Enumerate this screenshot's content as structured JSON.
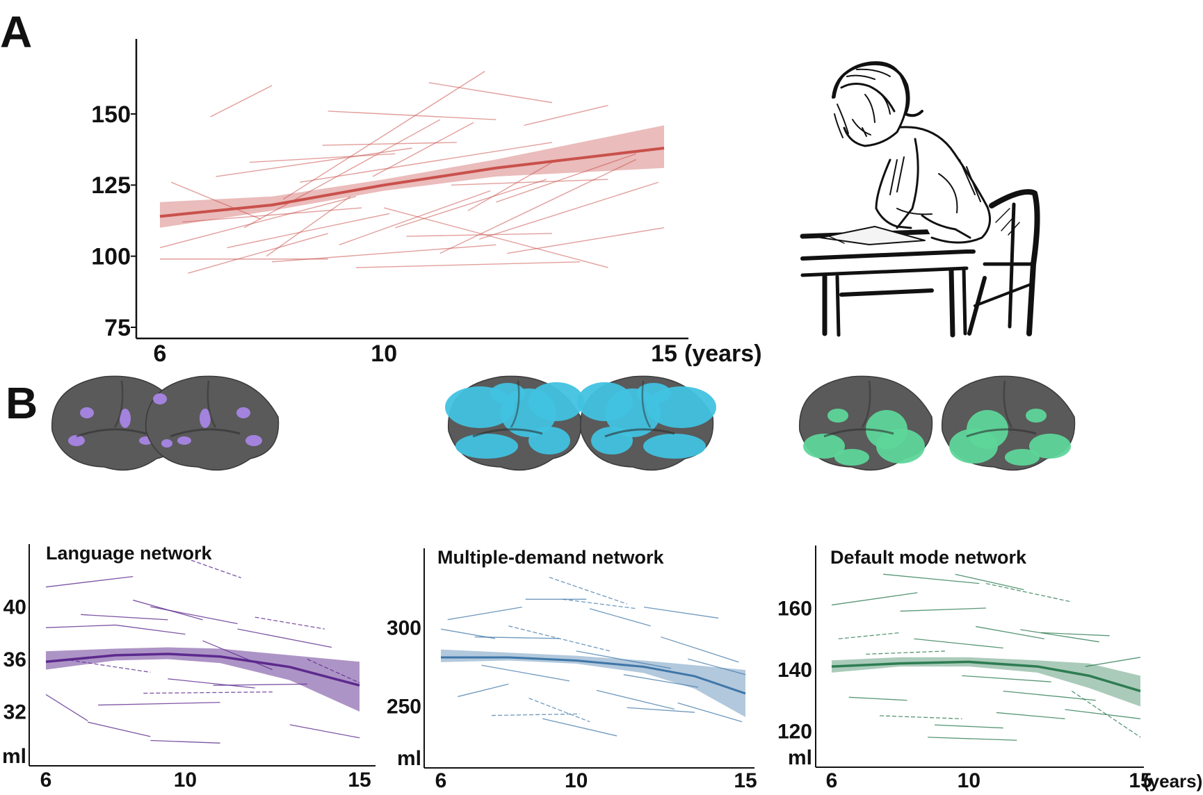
{
  "panel_labels": {
    "a": "A",
    "b": "B"
  },
  "colors": {
    "iq": "#c9504b",
    "language": "#5c2a8e",
    "multiple_demand": "#3e76a8",
    "default_mode": "#2e7d52",
    "brain_gray": "#5a5a5a",
    "language_highlight": "#a886e6",
    "multiple_demand_highlight": "#41c2e0",
    "default_mode_highlight": "#5ed69a"
  },
  "illustration": {
    "name": "child-writing-at-desk",
    "label": ""
  },
  "brains": [
    {
      "network": "language",
      "highlight": "language_highlight"
    },
    {
      "network": "multiple_demand",
      "highlight": "multiple_demand_highlight"
    },
    {
      "network": "default_mode",
      "highlight": "default_mode_highlight"
    }
  ],
  "chart_data": [
    {
      "id": "A",
      "type": "line",
      "title": "",
      "color_key": "iq",
      "xlabel_suffix": "(years)",
      "ylabel": "",
      "xlim": [
        6,
        15
      ],
      "ylim": [
        72,
        170
      ],
      "x_ticks": [
        6,
        10,
        15
      ],
      "y_ticks": [
        75,
        100,
        125,
        150
      ],
      "series": [
        {
          "values": [
            [
              6,
              114
            ],
            [
              8,
              118
            ],
            [
              10,
              125
            ],
            [
              12,
              131
            ],
            [
              15,
              138
            ]
          ]
        }
      ],
      "band": {
        "lower": [
          [
            6,
            110
          ],
          [
            8,
            116
          ],
          [
            10,
            123
          ],
          [
            12,
            128
          ],
          [
            15,
            131
          ]
        ],
        "upper": [
          [
            6,
            119
          ],
          [
            8,
            121
          ],
          [
            10,
            127
          ],
          [
            12,
            134
          ],
          [
            15,
            146
          ]
        ]
      },
      "trajectories": [
        [
          [
            6.9,
            149
          ],
          [
            8.0,
            160
          ]
        ],
        [
          [
            6.0,
            99
          ],
          [
            9.0,
            99
          ]
        ],
        [
          [
            6.0,
            103
          ],
          [
            9.5,
            121
          ]
        ],
        [
          [
            6.5,
            94
          ],
          [
            9.0,
            108
          ]
        ],
        [
          [
            7.0,
            128
          ],
          [
            10.5,
            138
          ]
        ],
        [
          [
            7.5,
            110
          ],
          [
            11.0,
            148
          ]
        ],
        [
          [
            8.0,
            98
          ],
          [
            12.0,
            104
          ]
        ],
        [
          [
            8.5,
            126
          ],
          [
            13.0,
            140
          ]
        ],
        [
          [
            9.0,
            151
          ],
          [
            12.0,
            148
          ]
        ],
        [
          [
            9.5,
            96
          ],
          [
            13.5,
            98
          ]
        ],
        [
          [
            10.0,
            117
          ],
          [
            14.0,
            96
          ]
        ],
        [
          [
            10.4,
            107
          ],
          [
            13.0,
            108
          ]
        ],
        [
          [
            10.8,
            161
          ],
          [
            13.0,
            154
          ]
        ],
        [
          [
            11.0,
            101
          ],
          [
            14.5,
            134
          ]
        ],
        [
          [
            11.5,
            116
          ],
          [
            13.0,
            133
          ]
        ],
        [
          [
            12.0,
            119
          ],
          [
            14.5,
            136
          ]
        ],
        [
          [
            12.5,
            146
          ],
          [
            14.0,
            153
          ]
        ],
        [
          [
            7.2,
            103
          ],
          [
            10.1,
            115
          ]
        ],
        [
          [
            8.2,
            120
          ],
          [
            11.8,
            165
          ]
        ],
        [
          [
            9.8,
            128
          ],
          [
            11.6,
            147
          ]
        ],
        [
          [
            6.2,
            126
          ],
          [
            7.8,
            113
          ]
        ],
        [
          [
            7.6,
            133
          ],
          [
            10.2,
            136
          ]
        ],
        [
          [
            8.9,
            139
          ],
          [
            11.3,
            140
          ]
        ],
        [
          [
            10.2,
            110
          ],
          [
            12.9,
            127
          ]
        ],
        [
          [
            11.7,
            106
          ],
          [
            14.9,
            126
          ]
        ],
        [
          [
            6.4,
            112
          ],
          [
            9.6,
            117
          ]
        ],
        [
          [
            9.2,
            104
          ],
          [
            11.9,
            123
          ]
        ],
        [
          [
            12.2,
            101
          ],
          [
            15.0,
            110
          ]
        ],
        [
          [
            7.9,
            100
          ],
          [
            9.4,
            121
          ]
        ],
        [
          [
            11.2,
            125
          ],
          [
            14.0,
            127
          ]
        ]
      ]
    },
    {
      "id": "B1",
      "type": "line",
      "title": "Language network",
      "color_key": "language",
      "xlabel_suffix": "",
      "ylabel": "ml",
      "xlim": [
        6,
        15
      ],
      "ylim": [
        28,
        46
      ],
      "x_ticks": [
        6,
        10,
        15
      ],
      "y_ticks": [
        32,
        36,
        40
      ],
      "series": [
        {
          "values": [
            [
              6,
              35.8
            ],
            [
              8,
              36.3
            ],
            [
              9.5,
              36.4
            ],
            [
              11,
              36.2
            ],
            [
              13,
              35.4
            ],
            [
              15,
              34.0
            ]
          ]
        }
      ],
      "band": {
        "lower": [
          [
            6,
            35.2
          ],
          [
            8,
            35.9
          ],
          [
            9.5,
            36.0
          ],
          [
            11,
            35.7
          ],
          [
            13,
            34.4
          ],
          [
            15,
            32.0
          ]
        ],
        "upper": [
          [
            6,
            36.6
          ],
          [
            8,
            36.8
          ],
          [
            9.5,
            36.9
          ],
          [
            11,
            36.8
          ],
          [
            13,
            36.3
          ],
          [
            15,
            35.8
          ]
        ]
      },
      "trajectories": [
        [
          [
            6.0,
            41.5
          ],
          [
            8.5,
            42.3
          ]
        ],
        [
          [
            7.0,
            39.4
          ],
          [
            9.5,
            39.0
          ]
        ],
        [
          [
            9.0,
            40.0
          ],
          [
            11.5,
            38.7
          ]
        ],
        [
          [
            10.0,
            43.7
          ],
          [
            11.6,
            42.2
          ]
        ],
        [
          [
            6.0,
            33.3
          ],
          [
            7.2,
            31.3
          ]
        ],
        [
          [
            7.2,
            31.2
          ],
          [
            9.0,
            30.1
          ]
        ],
        [
          [
            9.0,
            29.8
          ],
          [
            11.0,
            29.6
          ]
        ],
        [
          [
            12.0,
            39.2
          ],
          [
            14.0,
            38.3
          ]
        ],
        [
          [
            13.0,
            31.0
          ],
          [
            15.0,
            30.0
          ]
        ],
        [
          [
            8.0,
            38.6
          ],
          [
            10.0,
            37.9
          ]
        ],
        [
          [
            10.5,
            37.4
          ],
          [
            12.5,
            35.2
          ]
        ],
        [
          [
            6.5,
            36.0
          ],
          [
            9.0,
            35.0
          ]
        ],
        [
          [
            9.5,
            34.5
          ],
          [
            12.0,
            33.8
          ]
        ],
        [
          [
            11.5,
            38.3
          ],
          [
            14.2,
            36.9
          ]
        ],
        [
          [
            8.5,
            40.5
          ],
          [
            10.5,
            39.0
          ]
        ],
        [
          [
            13.5,
            36.0
          ],
          [
            15.0,
            34.2
          ]
        ],
        [
          [
            7.5,
            32.5
          ],
          [
            11.0,
            32.7
          ]
        ],
        [
          [
            6.0,
            38.4
          ],
          [
            8.0,
            38.6
          ]
        ],
        [
          [
            10.8,
            34.0
          ],
          [
            13.5,
            34.1
          ]
        ],
        [
          [
            8.8,
            33.4
          ],
          [
            12.5,
            33.5
          ]
        ]
      ]
    },
    {
      "id": "B2",
      "type": "line",
      "title": "Multiple-demand network",
      "color_key": "multiple_demand",
      "xlabel_suffix": "",
      "ylabel": "ml",
      "xlim": [
        6,
        15
      ],
      "ylim": [
        218,
        352
      ],
      "x_ticks": [
        6,
        10,
        15
      ],
      "y_ticks": [
        250,
        300
      ],
      "series": [
        {
          "values": [
            [
              6,
              281
            ],
            [
              8,
              281
            ],
            [
              10,
              279
            ],
            [
              12,
              275
            ],
            [
              13.5,
              269
            ],
            [
              15,
              258
            ]
          ]
        }
      ],
      "band": {
        "lower": [
          [
            6,
            278
          ],
          [
            8,
            279
          ],
          [
            10,
            277
          ],
          [
            12,
            271
          ],
          [
            13.5,
            261
          ],
          [
            15,
            243
          ]
        ],
        "upper": [
          [
            6,
            286
          ],
          [
            8,
            284
          ],
          [
            10,
            282
          ],
          [
            12,
            279
          ],
          [
            13.5,
            276
          ],
          [
            15,
            273
          ]
        ]
      },
      "trajectories": [
        [
          [
            6.2,
            305
          ],
          [
            8.4,
            313
          ]
        ],
        [
          [
            7.0,
            294
          ],
          [
            9.5,
            293
          ]
        ],
        [
          [
            8.5,
            318
          ],
          [
            10.3,
            318
          ]
        ],
        [
          [
            9.6,
            318
          ],
          [
            11.8,
            312
          ]
        ],
        [
          [
            10.4,
            312
          ],
          [
            12.2,
            301
          ]
        ],
        [
          [
            12.0,
            313
          ],
          [
            14.2,
            306
          ]
        ],
        [
          [
            6.5,
            256
          ],
          [
            8.0,
            264
          ]
        ],
        [
          [
            7.5,
            244
          ],
          [
            10.1,
            245
          ]
        ],
        [
          [
            9.0,
            242
          ],
          [
            11.2,
            231
          ]
        ],
        [
          [
            11.5,
            249
          ],
          [
            13.5,
            246
          ]
        ],
        [
          [
            13.0,
            252
          ],
          [
            14.9,
            240
          ]
        ],
        [
          [
            8.0,
            301
          ],
          [
            11.0,
            285
          ]
        ],
        [
          [
            10.0,
            285
          ],
          [
            12.8,
            274
          ]
        ],
        [
          [
            12.5,
            294
          ],
          [
            14.8,
            278
          ]
        ],
        [
          [
            6.0,
            299
          ],
          [
            7.6,
            293
          ]
        ],
        [
          [
            9.2,
            332
          ],
          [
            11.5,
            315
          ]
        ],
        [
          [
            11.4,
            270
          ],
          [
            13.6,
            262
          ]
        ],
        [
          [
            7.2,
            276
          ],
          [
            9.8,
            266
          ]
        ],
        [
          [
            13.3,
            280
          ],
          [
            15.0,
            270
          ]
        ],
        [
          [
            8.6,
            255
          ],
          [
            10.4,
            240
          ]
        ],
        [
          [
            10.6,
            260
          ],
          [
            12.9,
            248
          ]
        ]
      ]
    },
    {
      "id": "B3",
      "type": "line",
      "title": "Default mode network",
      "color_key": "default_mode",
      "xlabel_suffix": "(years)",
      "ylabel": "ml",
      "xlim": [
        6,
        15
      ],
      "ylim": [
        108,
        178
      ],
      "x_ticks": [
        6,
        10,
        15
      ],
      "y_ticks": [
        120,
        140,
        160
      ],
      "series": [
        {
          "values": [
            [
              6,
              141
            ],
            [
              8,
              142
            ],
            [
              10,
              142.5
            ],
            [
              12,
              141
            ],
            [
              13.5,
              138
            ],
            [
              15,
              133
            ]
          ]
        }
      ],
      "band": {
        "lower": [
          [
            6,
            139
          ],
          [
            8,
            141
          ],
          [
            10,
            141
          ],
          [
            12,
            139
          ],
          [
            13.5,
            134
          ],
          [
            15,
            128
          ]
        ],
        "upper": [
          [
            6,
            143
          ],
          [
            8,
            144
          ],
          [
            10,
            144
          ],
          [
            12,
            143
          ],
          [
            13.5,
            142
          ],
          [
            15,
            138
          ]
        ]
      },
      "trajectories": [
        [
          [
            6.0,
            161
          ],
          [
            8.5,
            165
          ]
        ],
        [
          [
            7.5,
            171
          ],
          [
            10.3,
            168
          ]
        ],
        [
          [
            9.6,
            171
          ],
          [
            11.6,
            166
          ]
        ],
        [
          [
            10.5,
            168
          ],
          [
            13.0,
            162
          ]
        ],
        [
          [
            8.0,
            159
          ],
          [
            10.5,
            160
          ]
        ],
        [
          [
            11.5,
            153
          ],
          [
            13.8,
            149
          ]
        ],
        [
          [
            6.5,
            131
          ],
          [
            8.2,
            130
          ]
        ],
        [
          [
            7.4,
            125
          ],
          [
            9.8,
            124
          ]
        ],
        [
          [
            9.0,
            122
          ],
          [
            11.0,
            121
          ]
        ],
        [
          [
            10.8,
            126
          ],
          [
            12.8,
            124
          ]
        ],
        [
          [
            12.8,
            127
          ],
          [
            15.0,
            124
          ]
        ],
        [
          [
            13.0,
            133
          ],
          [
            15.0,
            118
          ]
        ],
        [
          [
            8.4,
            150
          ],
          [
            11.0,
            147
          ]
        ],
        [
          [
            10.2,
            154
          ],
          [
            12.2,
            150
          ]
        ],
        [
          [
            13.4,
            141
          ],
          [
            15.0,
            144
          ]
        ],
        [
          [
            7.0,
            145
          ],
          [
            9.3,
            146
          ]
        ],
        [
          [
            11.0,
            133
          ],
          [
            13.7,
            130
          ]
        ],
        [
          [
            8.8,
            118
          ],
          [
            11.4,
            117
          ]
        ],
        [
          [
            12.1,
            152
          ],
          [
            14.1,
            151
          ]
        ],
        [
          [
            6.2,
            150
          ],
          [
            8.0,
            152
          ]
        ],
        [
          [
            9.8,
            138
          ],
          [
            12.4,
            136
          ]
        ]
      ]
    }
  ]
}
